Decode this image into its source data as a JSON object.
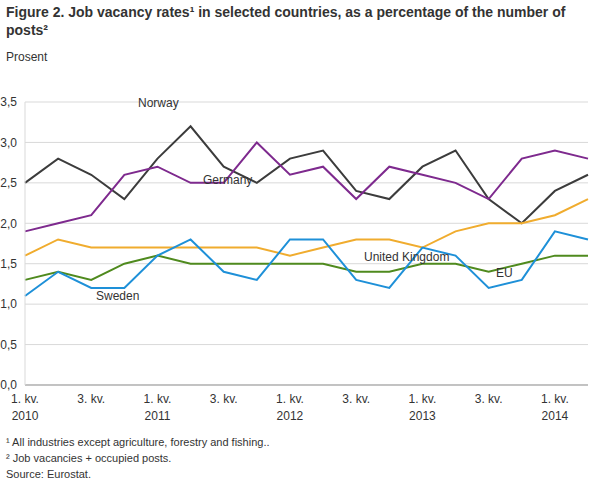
{
  "chart_data": {
    "type": "line",
    "title": "Figure 2. Job vacancy rates¹  in selected countries, as a percentage of the number of posts²",
    "y_label": "Prosent",
    "categories": [
      "1. kv.\n2010",
      null,
      "3. kv.",
      null,
      "1. kv.\n2011",
      null,
      "3. kv.",
      null,
      "1. kv.\n2012",
      null,
      "3. kv.",
      null,
      "1. kv.\n2013",
      null,
      "3. kv.",
      null,
      "1. kv.\n2014",
      null
    ],
    "series": [
      {
        "name": "Norway",
        "color": "#3c3c3c",
        "values": [
          2.5,
          2.8,
          2.6,
          2.3,
          2.8,
          3.2,
          2.7,
          2.5,
          2.8,
          2.9,
          2.4,
          2.3,
          2.7,
          2.9,
          2.3,
          2.0,
          2.4,
          2.6
        ]
      },
      {
        "name": "Germany",
        "color": "#7e2a8e",
        "values": [
          1.9,
          2.0,
          2.1,
          2.6,
          2.7,
          2.5,
          2.5,
          3.0,
          2.6,
          2.7,
          2.3,
          2.7,
          2.6,
          2.5,
          2.3,
          2.8,
          2.9,
          2.8
        ]
      },
      {
        "name": "United Kingdom",
        "color": "#f0ac2e",
        "values": [
          1.6,
          1.8,
          1.7,
          1.7,
          1.7,
          1.7,
          1.7,
          1.7,
          1.6,
          1.7,
          1.8,
          1.8,
          1.7,
          1.9,
          2.0,
          2.0,
          2.1,
          2.3
        ]
      },
      {
        "name": "EU",
        "color": "#4f8a1e",
        "values": [
          1.3,
          1.4,
          1.3,
          1.5,
          1.6,
          1.5,
          1.5,
          1.5,
          1.5,
          1.5,
          1.4,
          1.4,
          1.5,
          1.5,
          1.4,
          1.5,
          1.6,
          1.6
        ]
      },
      {
        "name": "Sweden",
        "color": "#1e90d8",
        "values": [
          1.1,
          1.4,
          1.2,
          1.2,
          1.6,
          1.8,
          1.4,
          1.3,
          1.8,
          1.8,
          1.3,
          1.2,
          1.7,
          1.6,
          1.2,
          1.3,
          1.9,
          1.8
        ]
      }
    ],
    "ylim": [
      0,
      3.5
    ],
    "yticks": [
      {
        "value": 0,
        "label": "0,0"
      },
      {
        "value": 0.5,
        "label": "0,5"
      },
      {
        "value": 1,
        "label": "1,0"
      },
      {
        "value": 1.5,
        "label": "1,5"
      },
      {
        "value": 2,
        "label": "2,0"
      },
      {
        "value": 2.5,
        "label": "2,5"
      },
      {
        "value": 3,
        "label": "3,0"
      },
      {
        "value": 3.5,
        "label": "3,5"
      }
    ],
    "grid": true,
    "notes": [
      "¹ All industries except agriculture, forestry and fishing..",
      "² Job vacancies + occupied posts.",
      "Source: Eurostat."
    ]
  }
}
